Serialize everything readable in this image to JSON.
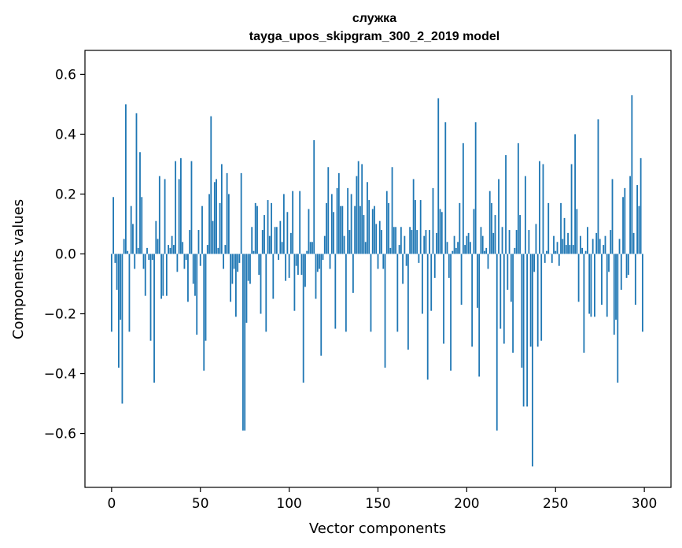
{
  "chart_data": {
    "type": "bar",
    "title_line1": "служка",
    "title_line2": "tayga_upos_skipgram_300_2_2019 model",
    "xlabel": "Vector components",
    "ylabel": "Components values",
    "xlim": [
      -15,
      315
    ],
    "ylim": [
      -0.78,
      0.68
    ],
    "x_ticks": [
      0,
      50,
      100,
      150,
      200,
      250,
      300
    ],
    "y_ticks": [
      -0.6,
      -0.4,
      -0.2,
      0.0,
      0.2,
      0.4,
      0.6
    ],
    "x_tick_labels": [
      "0",
      "50",
      "100",
      "150",
      "200",
      "250",
      "300"
    ],
    "y_tick_labels": [
      "−0.6",
      "−0.4",
      "−0.2",
      "0.0",
      "0.2",
      "0.4",
      "0.6"
    ],
    "bar_color": "#1f77b4",
    "grid": false,
    "values": [
      -0.26,
      0.19,
      -0.03,
      -0.12,
      -0.38,
      -0.22,
      -0.5,
      0.05,
      0.5,
      0.01,
      -0.26,
      0.16,
      0.1,
      -0.05,
      0.47,
      0.02,
      0.34,
      0.19,
      -0.05,
      -0.14,
      0.02,
      -0.02,
      -0.29,
      -0.02,
      -0.43,
      0.11,
      0.05,
      0.26,
      -0.15,
      -0.14,
      0.25,
      -0.14,
      0.03,
      0.02,
      0.06,
      0.03,
      0.31,
      -0.06,
      0.25,
      0.32,
      0.04,
      -0.05,
      -0.02,
      -0.16,
      0.08,
      0.31,
      -0.1,
      -0.14,
      -0.27,
      0.08,
      -0.04,
      0.16,
      -0.39,
      -0.29,
      0.03,
      0.2,
      0.46,
      0.11,
      0.24,
      0.25,
      0.02,
      0.17,
      0.3,
      -0.05,
      0.03,
      0.27,
      0.2,
      -0.16,
      -0.1,
      -0.05,
      -0.21,
      -0.06,
      -0.03,
      0.27,
      -0.59,
      -0.59,
      -0.23,
      -0.09,
      -0.1,
      0.09,
      0.01,
      0.17,
      0.16,
      -0.07,
      -0.2,
      0.08,
      0.13,
      -0.26,
      0.18,
      0.06,
      0.17,
      -0.15,
      0.09,
      0.09,
      -0.02,
      0.11,
      0.04,
      0.2,
      -0.09,
      0.14,
      -0.08,
      0.07,
      0.21,
      -0.19,
      -0.04,
      -0.07,
      0.21,
      -0.07,
      -0.43,
      -0.11,
      0.01,
      0.15,
      0.04,
      0.04,
      0.38,
      -0.15,
      -0.06,
      -0.05,
      -0.34,
      -0.02,
      0.06,
      0.17,
      0.29,
      -0.05,
      0.2,
      0.14,
      -0.25,
      0.22,
      0.27,
      0.16,
      0.16,
      0.06,
      -0.26,
      0.22,
      0.08,
      0.2,
      -0.13,
      0.16,
      0.26,
      0.31,
      0.16,
      0.3,
      0.13,
      0.04,
      0.24,
      0.18,
      -0.26,
      0.15,
      0.16,
      0.1,
      -0.05,
      0.11,
      0.08,
      -0.05,
      -0.38,
      0.21,
      0.17,
      0.02,
      0.29,
      0.09,
      0.09,
      -0.26,
      0.03,
      0.09,
      -0.1,
      0.06,
      -0.04,
      -0.32,
      0.09,
      0.08,
      0.25,
      0.18,
      0.08,
      -0.03,
      0.18,
      -0.2,
      0.06,
      0.08,
      -0.42,
      0.08,
      -0.19,
      0.22,
      -0.08,
      0.07,
      0.52,
      0.15,
      0.14,
      -0.3,
      0.44,
      0.04,
      -0.08,
      -0.39,
      0.01,
      0.06,
      0.02,
      0.04,
      0.17,
      -0.17,
      0.37,
      0.03,
      0.06,
      0.07,
      0.04,
      -0.31,
      0.15,
      0.44,
      -0.18,
      -0.41,
      0.09,
      0.06,
      0.01,
      0.02,
      -0.05,
      0.21,
      0.17,
      0.07,
      0.13,
      -0.59,
      0.25,
      -0.25,
      0.09,
      -0.3,
      0.33,
      -0.12,
      0.08,
      -0.16,
      -0.33,
      0.02,
      0.08,
      0.37,
      0.13,
      -0.38,
      -0.51,
      0.26,
      -0.51,
      0.08,
      -0.31,
      -0.71,
      -0.06,
      0.1,
      -0.31,
      0.31,
      -0.29,
      0.3,
      -0.03,
      0.01,
      0.17,
      0.0,
      -0.03,
      0.06,
      0.01,
      0.04,
      -0.04,
      0.17,
      0.05,
      0.12,
      0.03,
      0.07,
      0.03,
      0.3,
      0.03,
      0.4,
      0.15,
      -0.16,
      0.06,
      0.02,
      -0.33,
      0.01,
      0.09,
      -0.2,
      -0.21,
      0.05,
      -0.21,
      0.07,
      0.45,
      0.05,
      -0.17,
      0.03,
      0.06,
      -0.21,
      -0.06,
      0.08,
      0.25,
      -0.27,
      -0.22,
      -0.43,
      0.05,
      -0.12,
      0.19,
      0.22,
      -0.08,
      -0.07,
      0.26,
      0.53,
      0.07,
      -0.17,
      0.23,
      0.16,
      0.32,
      -0.26
    ]
  }
}
